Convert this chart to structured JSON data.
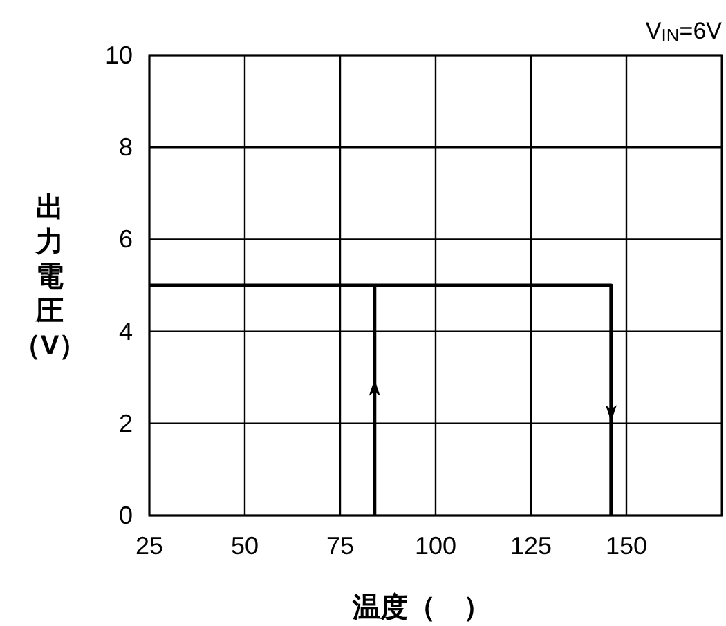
{
  "chart_data": {
    "type": "line",
    "xlabel": "温度（　）",
    "ylabel": "出力電圧（V）",
    "annotations": [
      "V$_{IN}$=6V"
    ],
    "xlim": [
      25,
      175
    ],
    "ylim": [
      0,
      10
    ],
    "xticks": [
      25,
      50,
      75,
      100,
      125,
      150
    ],
    "yticks": [
      0,
      2,
      4,
      6,
      8,
      10
    ],
    "grid": true,
    "series": [
      {
        "color": "#000000",
        "x": [
          25,
          146,
          146
        ],
        "values": [
          5,
          5,
          0
        ]
      },
      {
        "color": "#000000",
        "x": [
          84,
          84
        ],
        "values": [
          0,
          5
        ]
      }
    ]
  }
}
